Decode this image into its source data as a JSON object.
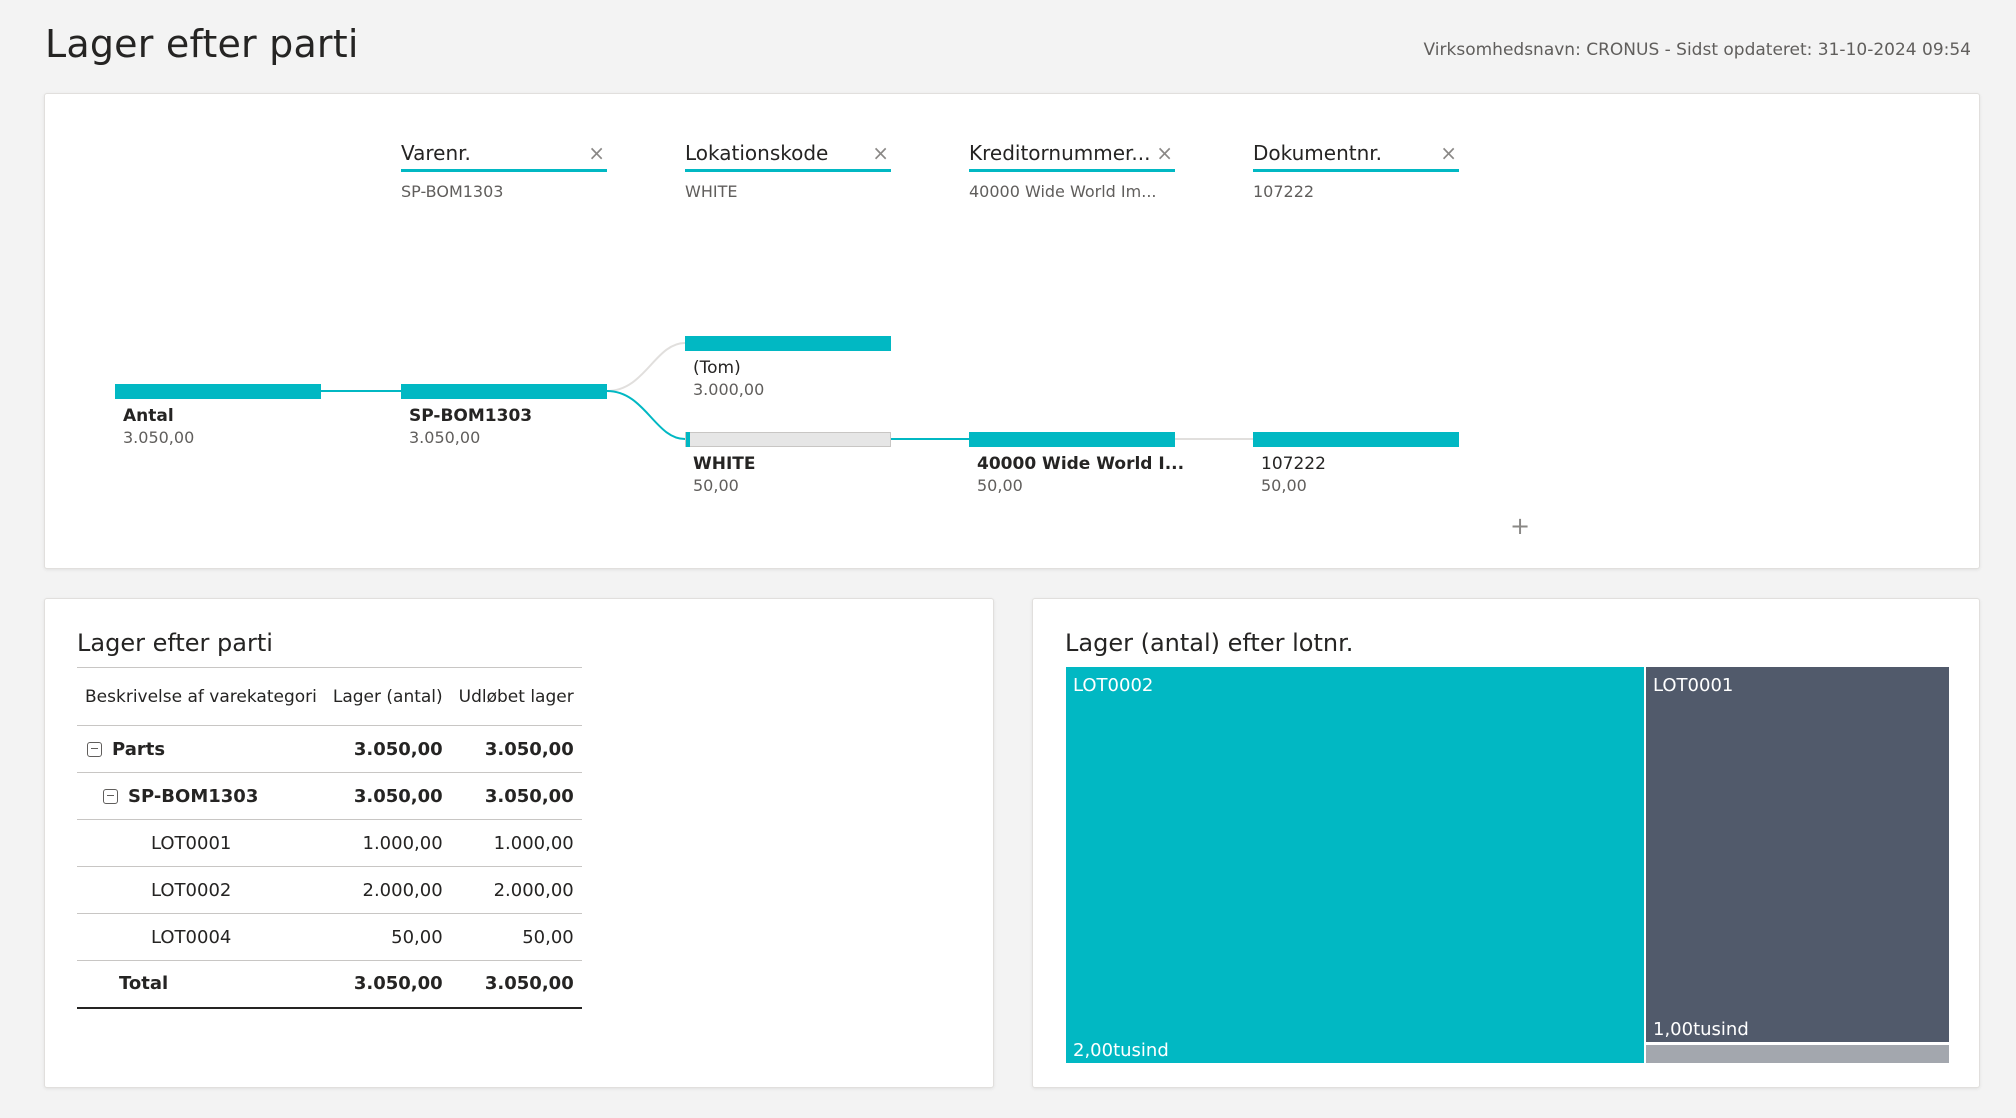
{
  "header": {
    "title": "Lager efter parti",
    "meta": "Virksomhedsnavn: CRONUS - Sidst opdateret: 31-10-2024 09:54"
  },
  "decomposition": {
    "levels": [
      {
        "title": "Varenr.",
        "value": "SP-BOM1303"
      },
      {
        "title": "Lokationskode",
        "value": "WHITE"
      },
      {
        "title": "Kreditornummer...",
        "value": "40000 Wide World Im..."
      },
      {
        "title": "Dokumentnr.",
        "value": "107222"
      }
    ],
    "nodes": {
      "root": {
        "label": "Antal",
        "value": "3.050,00"
      },
      "item": {
        "label": "SP-BOM1303",
        "value": "3.050,00"
      },
      "loc_empty": {
        "label": "(Tom)",
        "value": "3.000,00"
      },
      "loc_white": {
        "label": "WHITE",
        "value": "50,00"
      },
      "vendor": {
        "label": "40000 Wide World I...",
        "value": "50,00"
      },
      "document": {
        "label": "107222",
        "value": "50,00"
      }
    },
    "close_icon": "×",
    "plus_icon": "+"
  },
  "matrix": {
    "title": "Lager efter parti",
    "headers": [
      "Beskrivelse af varekategori",
      "Lager (antal)",
      "Udløbet lager"
    ],
    "rows": [
      {
        "label": "Parts",
        "qty": "3.050,00",
        "expired": "3.050,00"
      },
      {
        "label": "SP-BOM1303",
        "qty": "3.050,00",
        "expired": "3.050,00"
      },
      {
        "label": "LOT0001",
        "qty": "1.000,00",
        "expired": "1.000,00"
      },
      {
        "label": "LOT0002",
        "qty": "2.000,00",
        "expired": "2.000,00"
      },
      {
        "label": "LOT0004",
        "qty": "50,00",
        "expired": "50,00"
      },
      {
        "label": "Total",
        "qty": "3.050,00",
        "expired": "3.050,00"
      }
    ]
  },
  "treemap": {
    "title": "Lager (antal) efter lotnr.",
    "tiles": [
      {
        "label": "LOT0002",
        "value_label": "2,00tusind",
        "value": 2000,
        "color": "#01b8c3"
      },
      {
        "label": "LOT0001",
        "value_label": "1,00tusind",
        "value": 1000,
        "color": "#515a6b"
      },
      {
        "label": "",
        "value_label": "",
        "value": 50,
        "color": "#a3a7ae"
      }
    ]
  },
  "colors": {
    "accent": "#01b8c3",
    "slate": "#515a6b"
  }
}
